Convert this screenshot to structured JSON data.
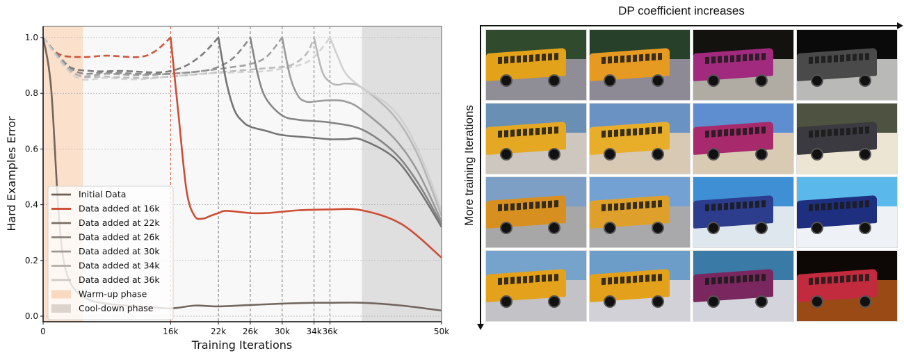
{
  "chart_data": {
    "type": "line",
    "title": "",
    "xlabel": "Training Iterations",
    "ylabel": "Hard Examples Error",
    "xlim": [
      0,
      50000
    ],
    "ylim": [
      -0.02,
      1.04
    ],
    "x_ticks": [
      {
        "value": 0,
        "label": "0"
      },
      {
        "value": 16000,
        "label": "16k"
      },
      {
        "value": 22000,
        "label": "22k"
      },
      {
        "value": 26000,
        "label": "26k"
      },
      {
        "value": 30000,
        "label": "30k"
      },
      {
        "value": 34000,
        "label": "34k"
      },
      {
        "value": 36000,
        "label": "36k"
      },
      {
        "value": 50000,
        "label": "50k"
      }
    ],
    "y_ticks": [
      {
        "value": 0.0,
        "label": "0.0"
      },
      {
        "value": 0.2,
        "label": "0.2"
      },
      {
        "value": 0.4,
        "label": "0.4"
      },
      {
        "value": 0.6,
        "label": "0.6"
      },
      {
        "value": 0.8,
        "label": "0.8"
      },
      {
        "value": 1.0,
        "label": "1.0"
      }
    ],
    "grid": true,
    "legend_position": "lower left",
    "shaded_regions": [
      {
        "name": "Warm-up phase",
        "x_start": 0,
        "x_end": 5000,
        "color": "#fbdcc4"
      },
      {
        "name": "Cool-down phase",
        "x_start": 40000,
        "x_end": 50000,
        "color": "#dcdadc"
      }
    ],
    "vertical_markers": [
      0,
      16000,
      22000,
      26000,
      30000,
      34000,
      36000
    ],
    "series": [
      {
        "name": "Initial Data",
        "color": "#6b5e55",
        "style": "solid",
        "x": [
          0,
          1000,
          2000,
          3000,
          5000,
          8000,
          12000,
          16000,
          19000,
          22000,
          26000,
          30000,
          34000,
          36000,
          40000,
          45000,
          50000
        ],
        "y": [
          1.0,
          0.82,
          0.35,
          0.15,
          0.07,
          0.045,
          0.035,
          0.028,
          0.038,
          0.035,
          0.04,
          0.045,
          0.048,
          0.048,
          0.048,
          0.038,
          0.02
        ]
      },
      {
        "name": "Data added at 16k",
        "color": "#c9452a",
        "style": "solid",
        "x": [
          16000,
          17000,
          18000,
          19000,
          20000,
          21000,
          22000,
          23000,
          26000,
          28000,
          30000,
          32000,
          34000,
          36000,
          40000,
          45000,
          50000
        ],
        "y": [
          1.0,
          0.72,
          0.45,
          0.36,
          0.35,
          0.36,
          0.37,
          0.378,
          0.37,
          0.37,
          0.375,
          0.38,
          0.382,
          0.383,
          0.38,
          0.33,
          0.21
        ],
        "pre_added_dashed": {
          "x": [
            0,
            2000,
            5000,
            8000,
            12000,
            14000,
            16000
          ],
          "y": [
            1.0,
            0.94,
            0.93,
            0.935,
            0.93,
            0.95,
            1.0
          ]
        }
      },
      {
        "name": "Data added at 22k",
        "color": "#6e6e6e",
        "style": "solid",
        "x": [
          22000,
          23000,
          24000,
          25000,
          26000,
          28000,
          30000,
          34000,
          36000,
          38000,
          40000,
          44000,
          47000,
          50000
        ],
        "y": [
          1.0,
          0.84,
          0.74,
          0.7,
          0.68,
          0.665,
          0.65,
          0.64,
          0.635,
          0.635,
          0.633,
          0.57,
          0.46,
          0.32
        ],
        "pre_added_dashed": {
          "x": [
            0,
            3000,
            6000,
            10000,
            14000,
            16000,
            18000,
            20000,
            22000
          ],
          "y": [
            1.0,
            0.9,
            0.88,
            0.88,
            0.875,
            0.88,
            0.9,
            0.94,
            1.0
          ]
        }
      },
      {
        "name": "Data added at 26k",
        "color": "#7e7e7e",
        "style": "solid",
        "x": [
          26000,
          27000,
          28000,
          30000,
          32000,
          34000,
          36000,
          40000,
          44000,
          47000,
          50000
        ],
        "y": [
          1.0,
          0.86,
          0.78,
          0.72,
          0.705,
          0.7,
          0.695,
          0.67,
          0.59,
          0.48,
          0.33
        ],
        "pre_added_dashed": {
          "x": [
            0,
            4000,
            8000,
            12000,
            16000,
            20000,
            22000,
            24000,
            26000
          ],
          "y": [
            1.0,
            0.88,
            0.875,
            0.87,
            0.87,
            0.88,
            0.895,
            0.93,
            1.0
          ]
        }
      },
      {
        "name": "Data added at 30k",
        "color": "#969696",
        "style": "solid",
        "x": [
          30000,
          31000,
          32000,
          33000,
          34000,
          36000,
          38000,
          40000,
          44000,
          47000,
          50000
        ],
        "y": [
          1.0,
          0.86,
          0.79,
          0.77,
          0.77,
          0.775,
          0.77,
          0.74,
          0.64,
          0.52,
          0.34
        ],
        "pre_added_dashed": {
          "x": [
            0,
            4000,
            8000,
            12000,
            16000,
            20000,
            24000,
            26000,
            28000,
            30000
          ],
          "y": [
            1.0,
            0.87,
            0.87,
            0.865,
            0.87,
            0.88,
            0.895,
            0.905,
            0.93,
            1.0
          ]
        }
      },
      {
        "name": "Data added at 34k",
        "color": "#b4b4b4",
        "style": "solid",
        "x": [
          34000,
          35000,
          36000,
          37000,
          38000,
          40000,
          44000,
          47000,
          50000
        ],
        "y": [
          1.0,
          0.88,
          0.84,
          0.83,
          0.835,
          0.82,
          0.72,
          0.58,
          0.36
        ],
        "pre_added_dashed": {
          "x": [
            0,
            4000,
            8000,
            12000,
            16000,
            20000,
            24000,
            28000,
            31000,
            33000,
            34000
          ],
          "y": [
            1.0,
            0.87,
            0.86,
            0.855,
            0.86,
            0.87,
            0.88,
            0.89,
            0.9,
            0.94,
            1.0
          ]
        }
      },
      {
        "name": "Data added at 36k",
        "color": "#cfcfcf",
        "style": "solid",
        "x": [
          36000,
          37000,
          38000,
          40000,
          44000,
          47000,
          50000
        ],
        "y": [
          1.0,
          0.93,
          0.87,
          0.82,
          0.74,
          0.6,
          0.38
        ],
        "pre_added_dashed": {
          "x": [
            0,
            4000,
            8000,
            12000,
            16000,
            20000,
            24000,
            28000,
            32000,
            34000,
            36000
          ],
          "y": [
            1.0,
            0.86,
            0.855,
            0.85,
            0.86,
            0.87,
            0.875,
            0.88,
            0.9,
            0.93,
            1.0
          ]
        }
      }
    ],
    "legend": [
      {
        "label": "Initial Data",
        "color": "#6b5e55",
        "kind": "line"
      },
      {
        "label": "Data added at 16k",
        "color": "#c9452a",
        "kind": "line"
      },
      {
        "label": "Data added at 22k",
        "color": "#7a6e66",
        "kind": "line"
      },
      {
        "label": "Data added at 26k",
        "color": "#8c817a",
        "kind": "line"
      },
      {
        "label": "Data added at 30k",
        "color": "#a0968f",
        "kind": "line"
      },
      {
        "label": "Data added at 34k",
        "color": "#b8aea8",
        "kind": "line"
      },
      {
        "label": "Data added at 36k",
        "color": "#d0c8c3",
        "kind": "line"
      },
      {
        "label": "Warm-up phase",
        "color": "#fbd9bf",
        "kind": "patch"
      },
      {
        "label": "Cool-down phase",
        "color": "#ddd3cd",
        "kind": "patch"
      }
    ]
  },
  "image_grid": {
    "top_label": "DP coefficient increases",
    "side_label": "More training Iterations",
    "rows": 4,
    "cols": 4,
    "tiles": [
      {
        "sky": "#2f4a2c",
        "ground": "#8f8d95",
        "body": "#e2a21a"
      },
      {
        "sky": "#26402a",
        "ground": "#8e8a95",
        "body": "#e69a22"
      },
      {
        "sky": "#14120f",
        "ground": "#b0aca3",
        "body": "#a12a7e"
      },
      {
        "sky": "#0a0a0a",
        "ground": "#b9b9b7",
        "body": "#4a4a4a"
      },
      {
        "sky": "#6a8fb5",
        "ground": "#cdc7c0",
        "body": "#e4a823"
      },
      {
        "sky": "#6a93c4",
        "ground": "#d7c9b4",
        "body": "#e8ae2a"
      },
      {
        "sky": "#5e8ed0",
        "ground": "#d9cab4",
        "body": "#a82a6c"
      },
      {
        "sky": "#4e5240",
        "ground": "#ede5d3",
        "body": "#3a3a40"
      },
      {
        "sky": "#7d9fc5",
        "ground": "#a7a7a7",
        "body": "#d7901f"
      },
      {
        "sky": "#73a1d4",
        "ground": "#a9a8ab",
        "body": "#dea02a"
      },
      {
        "sky": "#3f8fd4",
        "ground": "#dfe7ee",
        "body": "#2b3d8c"
      },
      {
        "sky": "#5bb8ea",
        "ground": "#eef2f7",
        "body": "#1f2f7f"
      },
      {
        "sky": "#76a3cc",
        "ground": "#c3c2c6",
        "body": "#e4a11b"
      },
      {
        "sky": "#6c9cc8",
        "ground": "#d2d1d8",
        "body": "#e3a11b"
      },
      {
        "sky": "#3a7aa7",
        "ground": "#d4d4dc",
        "body": "#7a2760"
      },
      {
        "sky": "#0d0805",
        "ground": "#9a4a14",
        "body": "#c22a3d"
      }
    ]
  }
}
